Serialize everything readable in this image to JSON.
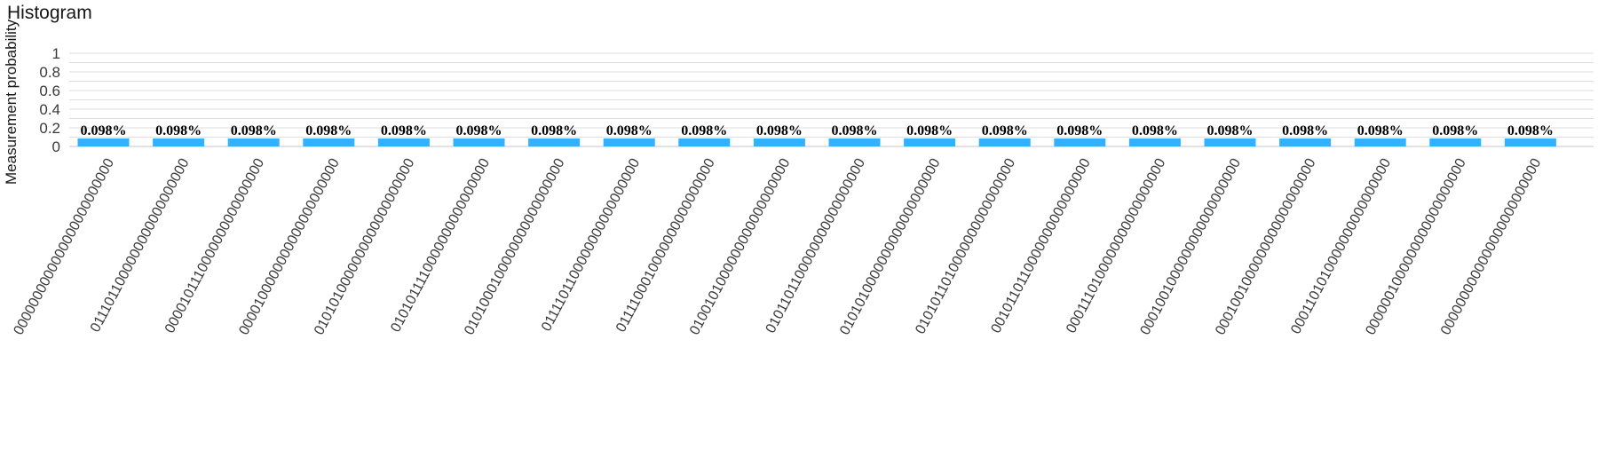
{
  "chart_data": {
    "type": "bar",
    "title": "Histogram",
    "xlabel": "",
    "ylabel": "Measurement probability",
    "ylim": [
      0,
      1
    ],
    "yticks": [
      "0",
      "0.2",
      "0.4",
      "0.6",
      "0.8",
      "1"
    ],
    "grid": true,
    "bar_color": "#33b1ff",
    "categories": [
      "0000000000000000000000000",
      "0111011000000000000000000",
      "0000101110000000000000000",
      "0000100000000000000000000",
      "0101010000000000000000000",
      "0101011110000000000000000",
      "0101000100000000000000000",
      "0111101100000000000000000",
      "0111100010000000000000000",
      "0100101000000000000000000",
      "0101101100000000000000000",
      "0101010000000000000000000",
      "0101011010000000000000000",
      "0010110110000000000000000",
      "0001110100000000000000000",
      "0001001000000000000000000",
      "0001001000000000000000000",
      "0001101010000000000000000",
      "0000001000000000000000000",
      "0000000000000000000000000"
    ],
    "values": [
      0.00098,
      0.00098,
      0.00098,
      0.00098,
      0.00098,
      0.00098,
      0.00098,
      0.00098,
      0.00098,
      0.00098,
      0.00098,
      0.00098,
      0.00098,
      0.00098,
      0.00098,
      0.00098,
      0.00098,
      0.00098,
      0.00098,
      0.00098
    ],
    "data_labels": [
      "0.098%",
      "0.098%",
      "0.098%",
      "0.098%",
      "0.098%",
      "0.098%",
      "0.098%",
      "0.098%",
      "0.098%",
      "0.098%",
      "0.098%",
      "0.098%",
      "0.098%",
      "0.098%",
      "0.098%",
      "0.098%",
      "0.098%",
      "0.098%",
      "0.098%",
      "0.098%"
    ]
  }
}
